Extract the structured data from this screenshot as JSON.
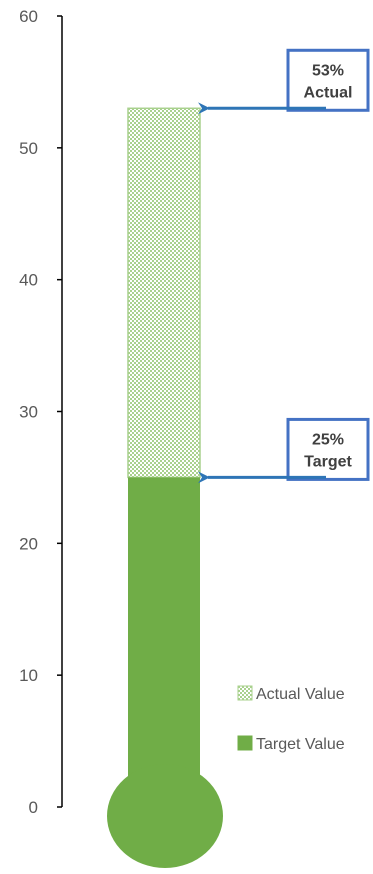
{
  "chart_data": {
    "type": "bar",
    "style": "thermometer",
    "ylim": [
      0,
      60
    ],
    "yticks": [
      0,
      10,
      20,
      30,
      40,
      50,
      60
    ],
    "series": [
      {
        "name": "Actual Value",
        "value": 53,
        "color": "#a9d18e",
        "pattern": "dotted"
      },
      {
        "name": "Target Value",
        "value": 25,
        "color": "#70ad47"
      }
    ],
    "annotations": [
      {
        "value": 53,
        "line1": "53%",
        "line2": "Actual"
      },
      {
        "value": 25,
        "line1": "25%",
        "line2": "Target"
      }
    ],
    "legend": [
      {
        "label": "Actual Value",
        "color": "#a9d18e"
      },
      {
        "label": "Target Value",
        "color": "#70ad47"
      }
    ],
    "legend_position": "bottom-right",
    "grid": false,
    "callout_border_color": "#4472c4",
    "arrow_color": "#2e75b6"
  }
}
